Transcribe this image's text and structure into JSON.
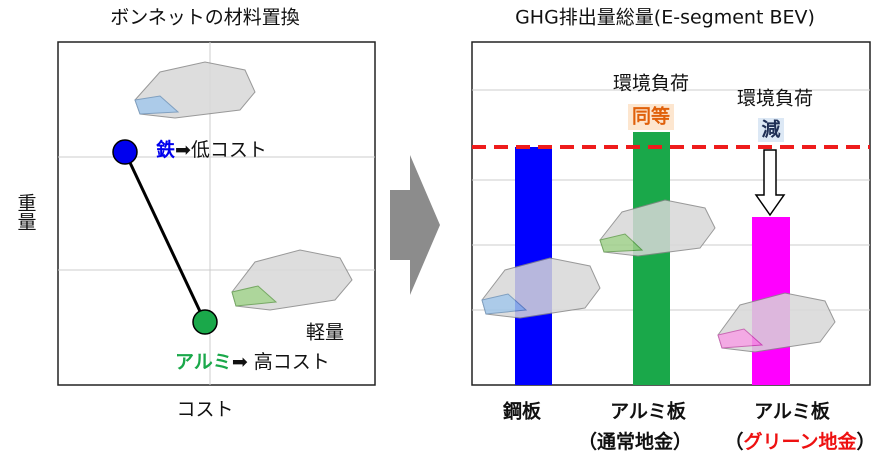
{
  "left_panel": {
    "title": "ボンネットの材料置換",
    "y_axis_label": "重量",
    "x_axis_label": "コスト",
    "steel": {
      "material": "鉄",
      "arrow_text": "➡低コスト"
    },
    "aluminum": {
      "material": "アルミ",
      "arrow_text": "➡ 高コスト",
      "note": "軽量"
    }
  },
  "right_panel": {
    "title": "GHG排出量総量(E-segment BEV)",
    "annotations": [
      {
        "label": "環境負荷",
        "emphasis": "同等"
      },
      {
        "label": "環境負荷",
        "emphasis": "減"
      }
    ],
    "bars": [
      {
        "label": "鋼板"
      },
      {
        "label": "アルミ板",
        "sublabel_open": "（",
        "sublabel": "通常地金",
        "sublabel_close": "）"
      },
      {
        "label": "アルミ板",
        "sublabel_open": "（",
        "sublabel": "グリーン地金",
        "sublabel_close": "）"
      }
    ]
  }
}
